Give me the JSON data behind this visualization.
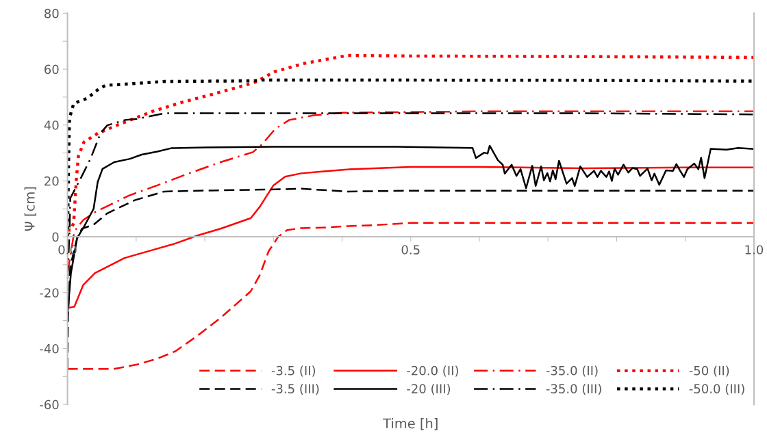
{
  "chart_data": {
    "type": "line",
    "xlabel": "Time [h]",
    "ylabel": "Ψ [cm]",
    "xlim": [
      0,
      1
    ],
    "ylim": [
      -60,
      80
    ],
    "xticks": [
      {
        "value": 0,
        "label": "0.0"
      },
      {
        "value": 0.1,
        "label": null
      },
      {
        "value": 0.2,
        "label": null
      },
      {
        "value": 0.3,
        "label": null
      },
      {
        "value": 0.4,
        "label": null
      },
      {
        "value": 0.5,
        "label": "0.5"
      },
      {
        "value": 0.6,
        "label": null
      },
      {
        "value": 0.7,
        "label": null
      },
      {
        "value": 0.8,
        "label": null
      },
      {
        "value": 0.9,
        "label": null
      },
      {
        "value": 1,
        "label": "1.0"
      }
    ],
    "yticks": [
      -60,
      {
        "value": -50,
        "label": null
      },
      -40,
      {
        "value": -30,
        "label": null
      },
      -20,
      {
        "value": -10,
        "label": null
      },
      0,
      {
        "value": 10,
        "label": null
      },
      20,
      {
        "value": 30,
        "label": null
      },
      40,
      {
        "value": 50,
        "label": null
      },
      60,
      {
        "value": 70,
        "label": null
      },
      80
    ],
    "grid": false,
    "legend": "bottom right",
    "marker": "none",
    "series": [
      {
        "name": "-3.5 (II)",
        "color": "#ff0000",
        "line_style": "dashed",
        "x": [
          0,
          0.067,
          0.1,
          0.13,
          0.157,
          0.19,
          0.223,
          0.267,
          0.28,
          0.293,
          0.307,
          0.32,
          0.34,
          0.373,
          0.407,
          0.45,
          0.5,
          0.75,
          1.0
        ],
        "values": [
          -47.3,
          -47.3,
          -45.8,
          -43.7,
          -41,
          -35.3,
          -29,
          -19.5,
          -13.8,
          -5.2,
          0,
          2.4,
          3.1,
          3.3,
          3.8,
          4.2,
          5.0,
          5.0,
          5.0
        ]
      },
      {
        "name": "-20.0 (II)",
        "color": "#ff0000",
        "line_style": "solid",
        "x": [
          0,
          0.01,
          0.023,
          0.04,
          0.083,
          0.123,
          0.157,
          0.19,
          0.223,
          0.267,
          0.28,
          0.3,
          0.317,
          0.34,
          0.373,
          0.407,
          0.5,
          0.6,
          0.75,
          0.9,
          1.0
        ],
        "values": [
          -25.5,
          -25,
          -17.2,
          -13,
          -7.6,
          -4.8,
          -2.4,
          0.5,
          2.9,
          6.7,
          10.7,
          18.4,
          21.5,
          22.7,
          23.4,
          24.1,
          25,
          25,
          24.5,
          24.8,
          24.8
        ]
      },
      {
        "name": "-35.0 (II)",
        "color": "#ff0000",
        "line_style": "dashdot",
        "x": [
          0,
          0.01,
          0.023,
          0.04,
          0.05,
          0.09,
          0.133,
          0.177,
          0.223,
          0.27,
          0.283,
          0.303,
          0.323,
          0.357,
          0.4,
          0.6,
          0.8,
          1.0
        ],
        "values": [
          -13,
          2,
          6,
          8.8,
          10,
          14.8,
          18.6,
          22.7,
          26.7,
          30.3,
          33,
          38.7,
          41.8,
          43.4,
          44.4,
          44.9,
          44.9,
          44.9
        ]
      },
      {
        "name": "-50 (II)",
        "color": "#ff0000",
        "line_style": "dotted",
        "x": [
          0,
          0.005,
          0.009,
          0.013,
          0.016,
          0.024,
          0.044,
          0.074,
          0.124,
          0.168,
          0.208,
          0.251,
          0.274,
          0.301,
          0.344,
          0.408,
          0.5,
          0.75,
          1.0
        ],
        "values": [
          2.4,
          2.4,
          5,
          21,
          29,
          33.9,
          37,
          40.1,
          44.9,
          48.2,
          50.8,
          53.7,
          55.4,
          59,
          62,
          64.9,
          64.7,
          64.5,
          64.2
        ]
      },
      {
        "name": "-3.5 (III)",
        "color": "#000000",
        "line_style": "dashed",
        "x": [
          0,
          0.001,
          0.004,
          0.014,
          0.021,
          0.038,
          0.058,
          0.098,
          0.141,
          0.191,
          0.291,
          0.341,
          0.408,
          0.5,
          0.75,
          1.0
        ],
        "values": [
          -47,
          -28,
          -10.7,
          -0.5,
          2.9,
          4.3,
          8.4,
          13.1,
          16.2,
          16.5,
          16.9,
          17.2,
          16.2,
          16.5,
          16.5,
          16.5
        ]
      },
      {
        "name": "-20 (III)",
        "color": "#000000",
        "line_style": "solid",
        "x": [
          0,
          0.005,
          0.014,
          0.024,
          0.038,
          0.044,
          0.051,
          0.068,
          0.091,
          0.108,
          0.131,
          0.151,
          0.2,
          0.3,
          0.48,
          0.59,
          0.595,
          0.607,
          0.612,
          0.615,
          0.627,
          0.634,
          0.637,
          0.647,
          0.654,
          0.66,
          0.668,
          0.677,
          0.682,
          0.69,
          0.694,
          0.699,
          0.703,
          0.707,
          0.711,
          0.716,
          0.727,
          0.735,
          0.739,
          0.747,
          0.757,
          0.767,
          0.772,
          0.777,
          0.785,
          0.789,
          0.793,
          0.797,
          0.802,
          0.81,
          0.817,
          0.823,
          0.83,
          0.834,
          0.845,
          0.851,
          0.855,
          0.862,
          0.872,
          0.882,
          0.887,
          0.892,
          0.898,
          0.903,
          0.913,
          0.919,
          0.923,
          0.928,
          0.937,
          0.96,
          0.977,
          1.0
        ],
        "values": [
          -28,
          -13,
          -0.5,
          3.6,
          10,
          19.6,
          24.3,
          26.7,
          27.9,
          29.4,
          30.5,
          31.7,
          32,
          32.2,
          32.2,
          31.8,
          28.2,
          30.1,
          29.8,
          32.6,
          27.4,
          25.8,
          22.6,
          25.8,
          21.8,
          24.2,
          17.4,
          25.4,
          18.2,
          25.2,
          20.2,
          22.8,
          19.8,
          23.8,
          20.6,
          27.2,
          19,
          21,
          18.2,
          25.2,
          21.4,
          23.6,
          21.4,
          23.6,
          21.4,
          23.4,
          20,
          24.4,
          22.2,
          25.8,
          23,
          24.6,
          24.2,
          21.8,
          24.4,
          20.2,
          22.6,
          18.6,
          23.8,
          23.6,
          26,
          23.8,
          21.4,
          24.2,
          26.2,
          24.2,
          28.3,
          21,
          31.5,
          31.2,
          31.8,
          31.4
        ]
      },
      {
        "name": "-35.0 (III)",
        "color": "#000000",
        "line_style": "dashdot",
        "x": [
          0,
          0.003,
          0.004,
          0.018,
          0.034,
          0.048,
          0.058,
          0.084,
          0.101,
          0.141,
          0.224,
          0.408,
          0.75,
          1.0
        ],
        "values": [
          -15,
          2,
          13.8,
          20.3,
          28.2,
          37,
          39.9,
          41.8,
          42.2,
          44.2,
          44.2,
          44.2,
          44.2,
          43.8
        ]
      },
      {
        "name": "-50.0 (III)",
        "color": "#000000",
        "line_style": "dotted",
        "x": [
          0,
          0.001,
          0.002,
          0.003,
          0.009,
          0.029,
          0.046,
          0.056,
          0.088,
          0.141,
          0.271,
          0.284,
          0.408,
          0.75,
          1.0
        ],
        "values": [
          0,
          16.2,
          32.2,
          42.5,
          47.7,
          49.6,
          53,
          54.2,
          54.7,
          55.6,
          55.8,
          56.1,
          56.1,
          56.0,
          55.7
        ]
      }
    ]
  }
}
